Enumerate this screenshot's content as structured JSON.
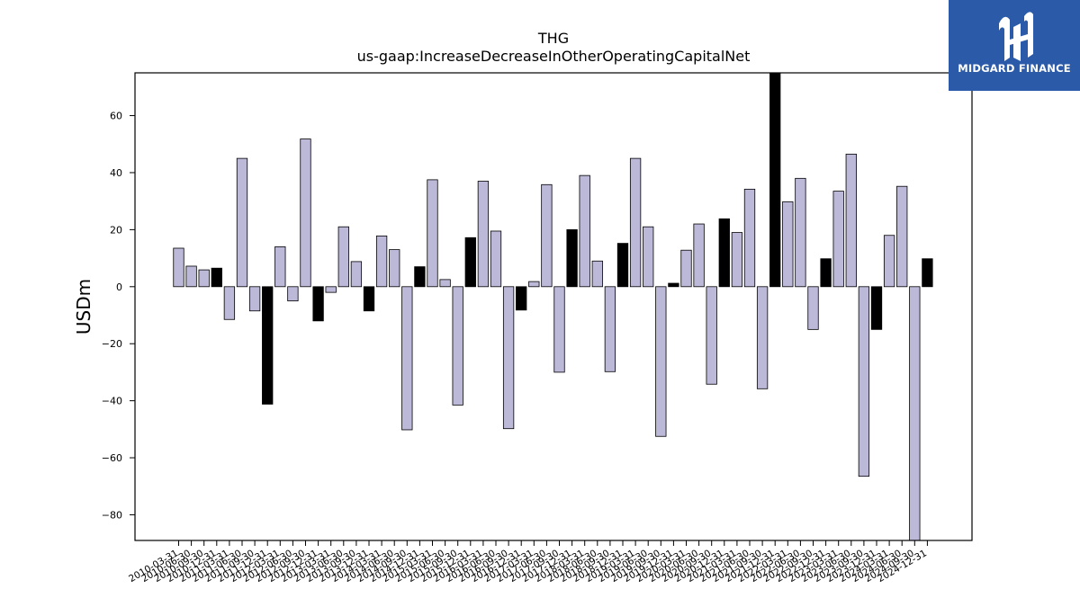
{
  "chart_data": {
    "type": "bar",
    "title": "THG",
    "subtitle": "us-gaap:IncreaseDecreaseInOtherOperatingCapitalNet",
    "ylabel": "USDm",
    "xlabel": "",
    "ylim": [
      -89,
      75
    ],
    "yticks": [
      -80,
      -60,
      -40,
      -20,
      0,
      20,
      40,
      60
    ],
    "grid": false,
    "colors": {
      "normal": "#bcb8d8",
      "highlight": "#000000",
      "edge": "#000000"
    },
    "categories": [
      "2010-03-31",
      "2010-06-30",
      "2010-09-30",
      "2010-12-31",
      "2011-03-31",
      "2011-06-30",
      "2011-09-30",
      "2011-12-31",
      "2012-03-31",
      "2012-06-30",
      "2012-09-30",
      "2012-12-31",
      "2013-03-31",
      "2013-06-30",
      "2013-09-30",
      "2013-12-31",
      "2014-03-31",
      "2014-06-30",
      "2014-09-30",
      "2014-12-31",
      "2015-03-31",
      "2015-06-30",
      "2015-09-30",
      "2015-12-31",
      "2016-03-31",
      "2016-06-30",
      "2016-09-30",
      "2016-12-31",
      "2017-03-31",
      "2017-06-30",
      "2017-09-30",
      "2017-12-31",
      "2018-03-31",
      "2018-06-30",
      "2018-09-30",
      "2018-12-31",
      "2019-03-31",
      "2019-06-30",
      "2019-09-30",
      "2019-12-31",
      "2020-03-31",
      "2020-06-30",
      "2020-09-30",
      "2020-12-31",
      "2021-03-31",
      "2021-06-30",
      "2021-09-30",
      "2021-12-31",
      "2022-03-31",
      "2022-06-30",
      "2022-09-30",
      "2022-12-31",
      "2023-03-31",
      "2023-06-30",
      "2023-09-30",
      "2023-12-31",
      "2024-03-31",
      "2024-06-30",
      "2024-09-30",
      "2024-12-31"
    ],
    "values": [
      13.5,
      7.2,
      5.9,
      6.5,
      -11.5,
      45.0,
      -8.5,
      -41.2,
      14.0,
      -5.0,
      51.8,
      -12.0,
      -2.0,
      21.0,
      8.8,
      -8.5,
      17.8,
      13.0,
      -50.2,
      7.0,
      37.5,
      2.5,
      -41.5,
      17.2,
      37.0,
      19.5,
      -49.8,
      -8.2,
      1.8,
      35.8,
      -30.0,
      20.0,
      39.0,
      9.0,
      -29.8,
      15.2,
      45.0,
      21.0,
      -52.5,
      1.2,
      12.8,
      22.0,
      -34.2,
      23.8,
      19.0,
      34.2,
      -35.8,
      80.0,
      29.8,
      38.0,
      -15.0,
      9.8,
      33.5,
      46.5,
      -66.5,
      -15.0,
      18.0,
      35.2,
      -89.0,
      9.8
    ],
    "highlight": [
      false,
      false,
      false,
      true,
      false,
      false,
      false,
      true,
      false,
      false,
      false,
      true,
      false,
      false,
      false,
      true,
      false,
      false,
      false,
      true,
      false,
      false,
      false,
      true,
      false,
      false,
      false,
      true,
      false,
      false,
      false,
      true,
      false,
      false,
      false,
      true,
      false,
      false,
      false,
      true,
      false,
      false,
      false,
      true,
      false,
      false,
      false,
      true,
      false,
      false,
      false,
      true,
      false,
      false,
      false,
      true,
      false,
      false,
      false,
      true
    ]
  },
  "logo": {
    "text": "MIDGARD FINANCE",
    "icon": "midgard-logo-icon"
  }
}
